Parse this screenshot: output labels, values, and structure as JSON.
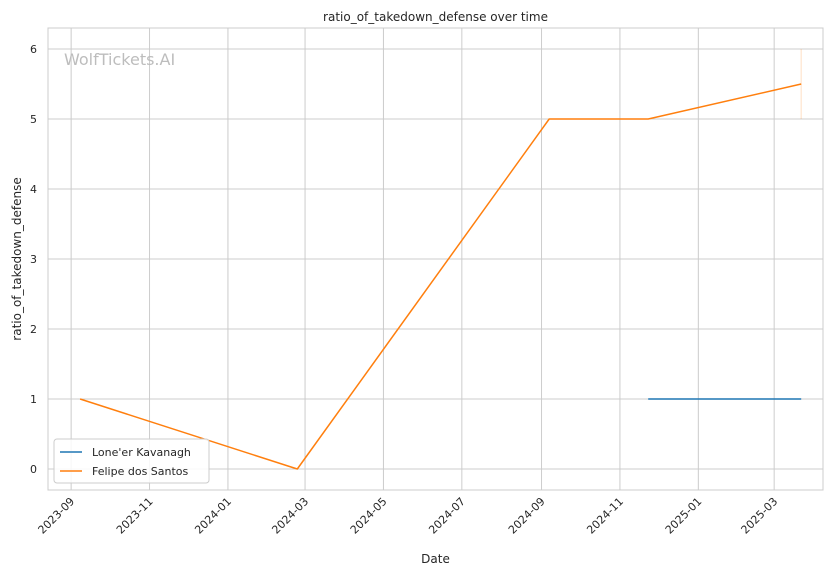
{
  "chart_data": {
    "type": "line",
    "title": "ratio_of_takedown_defense over time",
    "xlabel": "Date",
    "ylabel": "ratio_of_takedown_defense",
    "watermark": "WolfTickets.AI",
    "x_ticks": [
      "2023-09",
      "2023-11",
      "2024-01",
      "2024-03",
      "2024-05",
      "2024-07",
      "2024-09",
      "2024-11",
      "2025-01",
      "2025-03"
    ],
    "y_ticks": [
      "0",
      "1",
      "2",
      "3",
      "4",
      "5",
      "6"
    ],
    "ylim": [
      -0.3,
      6.3
    ],
    "xlim": [
      "2023-08-14",
      "2025-04-08"
    ],
    "grid": true,
    "legend_position": "lower-left",
    "series": [
      {
        "name": "Lone'er Kavanagh",
        "color": "#1f77b4",
        "points": [
          {
            "x": "2024-11-23",
            "y": 1
          },
          {
            "x": "2025-03-22",
            "y": 1
          }
        ]
      },
      {
        "name": "Felipe dos Santos",
        "color": "#ff7f0e",
        "points": [
          {
            "x": "2023-09-08",
            "y": 1
          },
          {
            "x": "2024-02-24",
            "y": 0
          },
          {
            "x": "2024-09-07",
            "y": 5
          },
          {
            "x": "2024-11-23",
            "y": 5
          },
          {
            "x": "2025-03-22",
            "y": 5.5
          }
        ]
      }
    ],
    "faint_marks": [
      {
        "color": "#ff7f0e",
        "x": "2025-03-22",
        "y_range": [
          5,
          6
        ]
      }
    ]
  }
}
